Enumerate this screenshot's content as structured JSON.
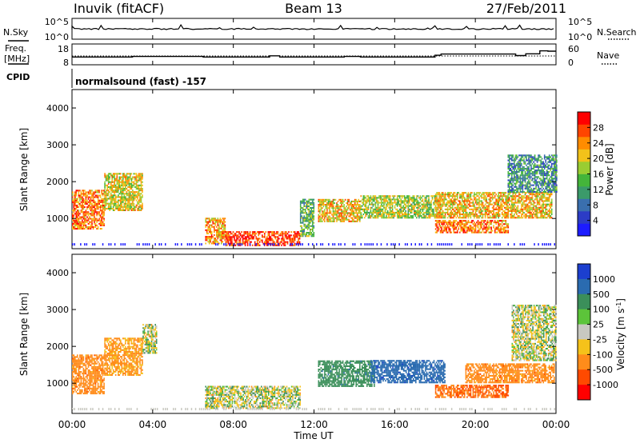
{
  "chart_data": {
    "type": "heatmap",
    "header": {
      "station": "Inuvik (fitACF)",
      "beam": "Beam 13",
      "date": "27/Feb/2011"
    },
    "time_ticks": [
      "00:00",
      "04:00",
      "08:00",
      "12:00",
      "16:00",
      "20:00",
      "00:00"
    ],
    "xlabel": "Time UT",
    "xlim_hours": [
      0,
      24
    ],
    "top_panels": {
      "nsky_label": "N.Sky",
      "nsearch_label": "N.Search",
      "nsky_ticks": [
        "10^5",
        "10^0"
      ],
      "nsearch_ticks": [
        "10^5",
        "10^0"
      ],
      "freq_label_1": "Freq.",
      "freq_label_2": "[MHz]",
      "freq_ticks": [
        "18",
        "8"
      ],
      "nave_label": "Nave",
      "nave_ticks": [
        "60",
        "0"
      ],
      "freq_steps": [
        [
          0,
          11.5
        ],
        [
          3.0,
          11.8
        ],
        [
          6.5,
          11.5
        ],
        [
          9.8,
          12.2
        ],
        [
          10.3,
          11.5
        ],
        [
          13.5,
          11.8
        ],
        [
          14.3,
          11.5
        ],
        [
          18.0,
          12.5
        ],
        [
          18.3,
          13.2
        ],
        [
          22.0,
          12.3
        ],
        [
          22.5,
          13.3
        ],
        [
          23.2,
          15.0
        ],
        [
          23.6,
          14.8
        ]
      ],
      "cpid_label": "CPID",
      "cpid_text": "normalsound (fast) -157"
    },
    "panels": [
      {
        "name": "Power",
        "ylabel": "Slant Range [km]",
        "ylim_km": [
          180,
          4500
        ],
        "yticks": [
          "1000",
          "2000",
          "3000",
          "4000"
        ],
        "colorbar_label": "Power [dB]",
        "colorbar_ticks": [
          "4",
          "8",
          "12",
          "16",
          "20",
          "24",
          "28"
        ],
        "colorbar_colors": [
          "#1c1cff",
          "#2c3cc6",
          "#3a6fae",
          "#3b9a6a",
          "#44b53a",
          "#9acd32",
          "#f2c21a",
          "#ff8c00",
          "#ff4500",
          "#ff0000"
        ],
        "regions": [
          {
            "t0": 0.0,
            "t1": 1.6,
            "r0": 700,
            "r1": 1750,
            "v": 26
          },
          {
            "t0": 1.6,
            "t1": 3.5,
            "r0": 1200,
            "r1": 2200,
            "v": 20
          },
          {
            "t0": 6.6,
            "t1": 7.6,
            "r0": 300,
            "r1": 1000,
            "v": 24
          },
          {
            "t0": 7.6,
            "t1": 11.3,
            "r0": 250,
            "r1": 650,
            "v": 30
          },
          {
            "t0": 11.3,
            "t1": 12.0,
            "r0": 500,
            "r1": 1500,
            "v": 14
          },
          {
            "t0": 12.2,
            "t1": 14.3,
            "r0": 900,
            "r1": 1500,
            "v": 22
          },
          {
            "t0": 14.3,
            "t1": 18.0,
            "r0": 1000,
            "r1": 1600,
            "v": 18
          },
          {
            "t0": 18.0,
            "t1": 21.6,
            "r0": 600,
            "r1": 950,
            "v": 26
          },
          {
            "t0": 18.0,
            "t1": 23.8,
            "r0": 1000,
            "r1": 1700,
            "v": 22
          },
          {
            "t0": 21.6,
            "t1": 24.0,
            "r0": 1700,
            "r1": 2700,
            "v": 10
          }
        ]
      },
      {
        "name": "Velocity",
        "ylabel": "Slant Range [km]",
        "ylim_km": [
          180,
          4500
        ],
        "yticks": [
          "1000",
          "2000",
          "3000",
          "4000"
        ],
        "colorbar_label": "Velocity [m s^-1]",
        "colorbar_ticks": [
          "1000",
          "500",
          "100",
          "25",
          "-25",
          "-100",
          "-500",
          "-1000"
        ],
        "colorbar_colors": [
          "#1c3fcf",
          "#2a6bb0",
          "#3b8f5a",
          "#5cc43a",
          "#c8c8c0",
          "#f5c21a",
          "#ff8c1a",
          "#ff4a00",
          "#ff0000"
        ],
        "regions": [
          {
            "t0": 0.0,
            "t1": 1.6,
            "r0": 700,
            "r1": 1750,
            "v": -200
          },
          {
            "t0": 1.6,
            "t1": 3.5,
            "r0": 1200,
            "r1": 2200,
            "v": -150
          },
          {
            "t0": 3.5,
            "t1": 4.2,
            "r0": 1800,
            "r1": 2600,
            "v": 0
          },
          {
            "t0": 6.6,
            "t1": 11.3,
            "r0": 300,
            "r1": 900,
            "v": 0
          },
          {
            "t0": 12.2,
            "t1": 15.0,
            "r0": 900,
            "r1": 1600,
            "v": 200
          },
          {
            "t0": 14.8,
            "t1": 18.5,
            "r0": 1000,
            "r1": 1600,
            "v": 600
          },
          {
            "t0": 18.0,
            "t1": 21.6,
            "r0": 600,
            "r1": 950,
            "v": -300
          },
          {
            "t0": 19.5,
            "t1": 23.9,
            "r0": 1000,
            "r1": 1500,
            "v": -200
          },
          {
            "t0": 21.8,
            "t1": 24.0,
            "r0": 1600,
            "r1": 3100,
            "v": 0
          }
        ]
      }
    ]
  }
}
